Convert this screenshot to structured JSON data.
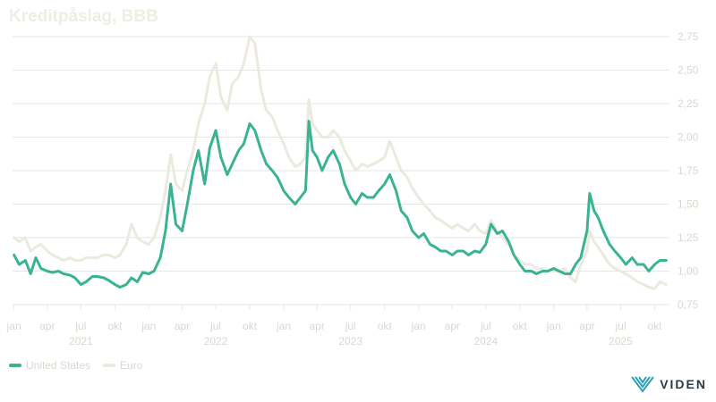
{
  "title": "Kreditpåslag, BBB",
  "brand": "VIDEN",
  "colors": {
    "us": "#3ab393",
    "euro": "#ece9df",
    "grid": "#e6e6e6",
    "text": "#d9d7cf"
  },
  "chart_data": {
    "type": "line",
    "title": "Kreditpåslag, BBB",
    "x_range": [
      "2020-12-28",
      "2025-11-10"
    ],
    "ylim": [
      0.75,
      2.75
    ],
    "yticks": [
      "0,75",
      "1,00",
      "1,25",
      "1,50",
      "1,75",
      "2,00",
      "2,25",
      "2,50",
      "2,75"
    ],
    "ytick_values": [
      0.75,
      1.0,
      1.25,
      1.5,
      1.75,
      2.0,
      2.25,
      2.5,
      2.75
    ],
    "y_axis_side": "right",
    "grid": true,
    "legend_position": "bottom-left",
    "month_ticks": [
      {
        "label": "jan",
        "date": "2021-01-01"
      },
      {
        "label": "apr",
        "date": "2021-04-01"
      },
      {
        "label": "jul",
        "date": "2021-07-01"
      },
      {
        "label": "okt",
        "date": "2021-10-01"
      },
      {
        "label": "jan",
        "date": "2022-01-01"
      },
      {
        "label": "apr",
        "date": "2022-04-01"
      },
      {
        "label": "jul",
        "date": "2022-07-01"
      },
      {
        "label": "okt",
        "date": "2022-10-01"
      },
      {
        "label": "jan",
        "date": "2023-01-01"
      },
      {
        "label": "apr",
        "date": "2023-04-01"
      },
      {
        "label": "jul",
        "date": "2023-07-01"
      },
      {
        "label": "okt",
        "date": "2023-10-01"
      },
      {
        "label": "jan",
        "date": "2024-01-01"
      },
      {
        "label": "apr",
        "date": "2024-04-01"
      },
      {
        "label": "jul",
        "date": "2024-07-01"
      },
      {
        "label": "okt",
        "date": "2024-10-01"
      },
      {
        "label": "jan",
        "date": "2025-01-01"
      },
      {
        "label": "apr",
        "date": "2025-04-01"
      },
      {
        "label": "jul",
        "date": "2025-07-01"
      },
      {
        "label": "okt",
        "date": "2025-10-01"
      }
    ],
    "year_labels": [
      {
        "label": "2021",
        "date": "2021-07-01"
      },
      {
        "label": "2022",
        "date": "2022-07-01"
      },
      {
        "label": "2023",
        "date": "2023-07-01"
      },
      {
        "label": "2024",
        "date": "2024-07-01"
      },
      {
        "label": "2025",
        "date": "2025-07-01"
      }
    ],
    "series": [
      {
        "name": "United States",
        "color": "#3ab393",
        "points": [
          [
            "2021-01-01",
            1.12
          ],
          [
            "2021-01-15",
            1.05
          ],
          [
            "2021-02-01",
            1.08
          ],
          [
            "2021-02-15",
            0.98
          ],
          [
            "2021-03-01",
            1.1
          ],
          [
            "2021-03-15",
            1.02
          ],
          [
            "2021-04-01",
            1.0
          ],
          [
            "2021-04-15",
            0.99
          ],
          [
            "2021-05-01",
            1.0
          ],
          [
            "2021-05-15",
            0.98
          ],
          [
            "2021-06-01",
            0.97
          ],
          [
            "2021-06-15",
            0.95
          ],
          [
            "2021-07-01",
            0.9
          ],
          [
            "2021-07-15",
            0.92
          ],
          [
            "2021-08-01",
            0.96
          ],
          [
            "2021-08-15",
            0.96
          ],
          [
            "2021-09-01",
            0.95
          ],
          [
            "2021-09-15",
            0.93
          ],
          [
            "2021-10-01",
            0.9
          ],
          [
            "2021-10-15",
            0.88
          ],
          [
            "2021-11-01",
            0.9
          ],
          [
            "2021-11-15",
            0.95
          ],
          [
            "2021-12-01",
            0.92
          ],
          [
            "2021-12-15",
            0.99
          ],
          [
            "2022-01-01",
            0.98
          ],
          [
            "2022-01-15",
            1.0
          ],
          [
            "2022-02-01",
            1.1
          ],
          [
            "2022-02-15",
            1.3
          ],
          [
            "2022-03-01",
            1.65
          ],
          [
            "2022-03-15",
            1.35
          ],
          [
            "2022-04-01",
            1.3
          ],
          [
            "2022-04-15",
            1.5
          ],
          [
            "2022-05-01",
            1.75
          ],
          [
            "2022-05-15",
            1.9
          ],
          [
            "2022-06-01",
            1.65
          ],
          [
            "2022-06-15",
            1.92
          ],
          [
            "2022-07-01",
            2.05
          ],
          [
            "2022-07-15",
            1.85
          ],
          [
            "2022-08-01",
            1.72
          ],
          [
            "2022-08-15",
            1.8
          ],
          [
            "2022-09-01",
            1.9
          ],
          [
            "2022-09-15",
            1.95
          ],
          [
            "2022-10-01",
            2.1
          ],
          [
            "2022-10-15",
            2.05
          ],
          [
            "2022-11-01",
            1.9
          ],
          [
            "2022-11-15",
            1.8
          ],
          [
            "2022-12-01",
            1.75
          ],
          [
            "2022-12-15",
            1.7
          ],
          [
            "2023-01-01",
            1.6
          ],
          [
            "2023-01-15",
            1.55
          ],
          [
            "2023-02-01",
            1.5
          ],
          [
            "2023-02-15",
            1.55
          ],
          [
            "2023-03-01",
            1.6
          ],
          [
            "2023-03-10",
            2.12
          ],
          [
            "2023-03-20",
            1.9
          ],
          [
            "2023-04-01",
            1.85
          ],
          [
            "2023-04-15",
            1.75
          ],
          [
            "2023-05-01",
            1.85
          ],
          [
            "2023-05-15",
            1.9
          ],
          [
            "2023-06-01",
            1.8
          ],
          [
            "2023-06-15",
            1.65
          ],
          [
            "2023-07-01",
            1.55
          ],
          [
            "2023-07-15",
            1.5
          ],
          [
            "2023-08-01",
            1.58
          ],
          [
            "2023-08-15",
            1.55
          ],
          [
            "2023-09-01",
            1.55
          ],
          [
            "2023-09-15",
            1.6
          ],
          [
            "2023-10-01",
            1.65
          ],
          [
            "2023-10-15",
            1.72
          ],
          [
            "2023-11-01",
            1.6
          ],
          [
            "2023-11-15",
            1.45
          ],
          [
            "2023-12-01",
            1.4
          ],
          [
            "2023-12-15",
            1.3
          ],
          [
            "2024-01-01",
            1.25
          ],
          [
            "2024-01-15",
            1.28
          ],
          [
            "2024-02-01",
            1.2
          ],
          [
            "2024-02-15",
            1.18
          ],
          [
            "2024-03-01",
            1.15
          ],
          [
            "2024-03-15",
            1.15
          ],
          [
            "2024-04-01",
            1.12
          ],
          [
            "2024-04-15",
            1.15
          ],
          [
            "2024-05-01",
            1.15
          ],
          [
            "2024-05-15",
            1.12
          ],
          [
            "2024-06-01",
            1.15
          ],
          [
            "2024-06-15",
            1.14
          ],
          [
            "2024-07-01",
            1.2
          ],
          [
            "2024-07-15",
            1.35
          ],
          [
            "2024-08-01",
            1.28
          ],
          [
            "2024-08-15",
            1.3
          ],
          [
            "2024-09-01",
            1.22
          ],
          [
            "2024-09-15",
            1.12
          ],
          [
            "2024-10-01",
            1.05
          ],
          [
            "2024-10-15",
            1.0
          ],
          [
            "2024-11-01",
            1.0
          ],
          [
            "2024-11-15",
            0.98
          ],
          [
            "2024-12-01",
            1.0
          ],
          [
            "2024-12-15",
            1.0
          ],
          [
            "2025-01-01",
            1.02
          ],
          [
            "2025-01-15",
            1.0
          ],
          [
            "2025-02-01",
            0.98
          ],
          [
            "2025-02-15",
            0.98
          ],
          [
            "2025-03-01",
            1.05
          ],
          [
            "2025-03-15",
            1.1
          ],
          [
            "2025-04-01",
            1.3
          ],
          [
            "2025-04-08",
            1.58
          ],
          [
            "2025-04-20",
            1.45
          ],
          [
            "2025-05-01",
            1.4
          ],
          [
            "2025-05-15",
            1.3
          ],
          [
            "2025-06-01",
            1.2
          ],
          [
            "2025-06-15",
            1.15
          ],
          [
            "2025-07-01",
            1.1
          ],
          [
            "2025-07-15",
            1.05
          ],
          [
            "2025-08-01",
            1.1
          ],
          [
            "2025-08-15",
            1.05
          ],
          [
            "2025-09-01",
            1.05
          ],
          [
            "2025-09-15",
            1.0
          ],
          [
            "2025-10-01",
            1.05
          ],
          [
            "2025-10-15",
            1.08
          ],
          [
            "2025-11-01",
            1.08
          ]
        ]
      },
      {
        "name": "Euro",
        "color": "#ece9df",
        "points": [
          [
            "2021-01-01",
            1.25
          ],
          [
            "2021-01-15",
            1.22
          ],
          [
            "2021-02-01",
            1.25
          ],
          [
            "2021-02-15",
            1.15
          ],
          [
            "2021-03-01",
            1.18
          ],
          [
            "2021-03-15",
            1.2
          ],
          [
            "2021-04-01",
            1.15
          ],
          [
            "2021-04-15",
            1.12
          ],
          [
            "2021-05-01",
            1.1
          ],
          [
            "2021-05-15",
            1.08
          ],
          [
            "2021-06-01",
            1.1
          ],
          [
            "2021-06-15",
            1.08
          ],
          [
            "2021-07-01",
            1.08
          ],
          [
            "2021-07-15",
            1.1
          ],
          [
            "2021-08-01",
            1.1
          ],
          [
            "2021-08-15",
            1.1
          ],
          [
            "2021-09-01",
            1.12
          ],
          [
            "2021-09-15",
            1.12
          ],
          [
            "2021-10-01",
            1.1
          ],
          [
            "2021-10-15",
            1.12
          ],
          [
            "2021-11-01",
            1.2
          ],
          [
            "2021-11-15",
            1.35
          ],
          [
            "2021-12-01",
            1.25
          ],
          [
            "2021-12-15",
            1.22
          ],
          [
            "2022-01-01",
            1.2
          ],
          [
            "2022-01-15",
            1.25
          ],
          [
            "2022-02-01",
            1.4
          ],
          [
            "2022-02-15",
            1.6
          ],
          [
            "2022-03-01",
            1.87
          ],
          [
            "2022-03-15",
            1.65
          ],
          [
            "2022-04-01",
            1.6
          ],
          [
            "2022-04-15",
            1.75
          ],
          [
            "2022-05-01",
            1.9
          ],
          [
            "2022-05-15",
            2.1
          ],
          [
            "2022-06-01",
            2.25
          ],
          [
            "2022-06-15",
            2.45
          ],
          [
            "2022-07-01",
            2.55
          ],
          [
            "2022-07-15",
            2.3
          ],
          [
            "2022-08-01",
            2.2
          ],
          [
            "2022-08-15",
            2.4
          ],
          [
            "2022-09-01",
            2.45
          ],
          [
            "2022-09-15",
            2.55
          ],
          [
            "2022-10-01",
            2.75
          ],
          [
            "2022-10-15",
            2.7
          ],
          [
            "2022-11-01",
            2.35
          ],
          [
            "2022-11-15",
            2.2
          ],
          [
            "2022-12-01",
            2.15
          ],
          [
            "2022-12-15",
            2.05
          ],
          [
            "2023-01-01",
            1.95
          ],
          [
            "2023-01-15",
            1.85
          ],
          [
            "2023-02-01",
            1.78
          ],
          [
            "2023-02-15",
            1.8
          ],
          [
            "2023-03-01",
            1.85
          ],
          [
            "2023-03-10",
            2.28
          ],
          [
            "2023-03-20",
            2.1
          ],
          [
            "2023-04-01",
            2.05
          ],
          [
            "2023-04-15",
            2.0
          ],
          [
            "2023-05-01",
            2.0
          ],
          [
            "2023-05-15",
            2.05
          ],
          [
            "2023-06-01",
            2.0
          ],
          [
            "2023-06-15",
            1.9
          ],
          [
            "2023-07-01",
            1.82
          ],
          [
            "2023-07-15",
            1.75
          ],
          [
            "2023-08-01",
            1.8
          ],
          [
            "2023-08-15",
            1.78
          ],
          [
            "2023-09-01",
            1.8
          ],
          [
            "2023-09-15",
            1.82
          ],
          [
            "2023-10-01",
            1.85
          ],
          [
            "2023-10-15",
            1.97
          ],
          [
            "2023-11-01",
            1.85
          ],
          [
            "2023-11-15",
            1.75
          ],
          [
            "2023-12-01",
            1.7
          ],
          [
            "2023-12-15",
            1.62
          ],
          [
            "2024-01-01",
            1.55
          ],
          [
            "2024-01-15",
            1.5
          ],
          [
            "2024-02-01",
            1.45
          ],
          [
            "2024-02-15",
            1.4
          ],
          [
            "2024-03-01",
            1.38
          ],
          [
            "2024-03-15",
            1.35
          ],
          [
            "2024-04-01",
            1.32
          ],
          [
            "2024-04-15",
            1.35
          ],
          [
            "2024-05-01",
            1.32
          ],
          [
            "2024-05-15",
            1.3
          ],
          [
            "2024-06-01",
            1.35
          ],
          [
            "2024-06-15",
            1.3
          ],
          [
            "2024-07-01",
            1.28
          ],
          [
            "2024-07-15",
            1.38
          ],
          [
            "2024-08-01",
            1.3
          ],
          [
            "2024-08-15",
            1.25
          ],
          [
            "2024-09-01",
            1.2
          ],
          [
            "2024-09-15",
            1.12
          ],
          [
            "2024-10-01",
            1.08
          ],
          [
            "2024-10-15",
            1.05
          ],
          [
            "2024-11-01",
            1.05
          ],
          [
            "2024-11-15",
            1.02
          ],
          [
            "2024-12-01",
            1.02
          ],
          [
            "2024-12-15",
            1.0
          ],
          [
            "2025-01-01",
            1.0
          ],
          [
            "2025-01-15",
            1.0
          ],
          [
            "2025-02-01",
            1.02
          ],
          [
            "2025-02-15",
            0.95
          ],
          [
            "2025-03-01",
            0.92
          ],
          [
            "2025-03-15",
            1.05
          ],
          [
            "2025-04-01",
            1.15
          ],
          [
            "2025-04-08",
            1.3
          ],
          [
            "2025-04-20",
            1.22
          ],
          [
            "2025-05-01",
            1.18
          ],
          [
            "2025-05-15",
            1.12
          ],
          [
            "2025-06-01",
            1.05
          ],
          [
            "2025-06-15",
            1.02
          ],
          [
            "2025-07-01",
            1.0
          ],
          [
            "2025-07-15",
            0.98
          ],
          [
            "2025-08-01",
            0.95
          ],
          [
            "2025-08-15",
            0.92
          ],
          [
            "2025-09-01",
            0.9
          ],
          [
            "2025-09-15",
            0.88
          ],
          [
            "2025-10-01",
            0.87
          ],
          [
            "2025-10-15",
            0.92
          ],
          [
            "2025-11-01",
            0.9
          ]
        ]
      }
    ]
  }
}
